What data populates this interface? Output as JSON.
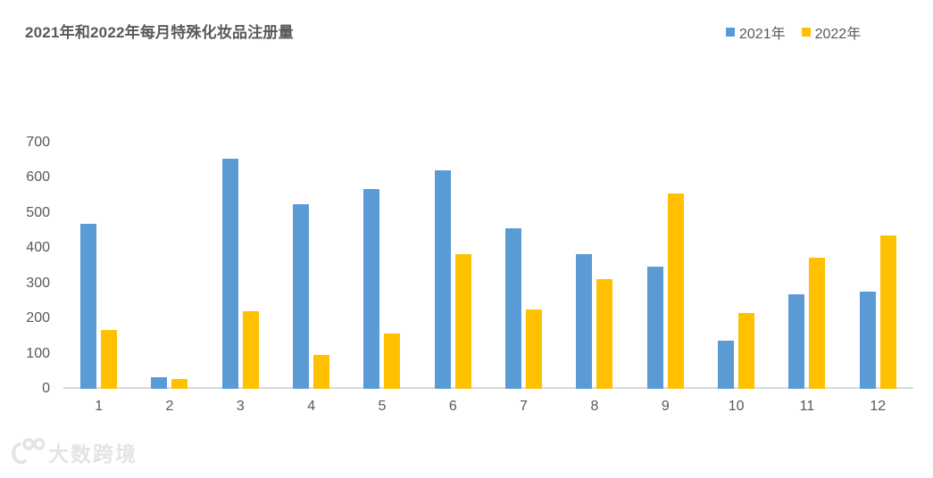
{
  "title": "2021年和2022年每月特殊化妆品注册量",
  "watermark_text": "大数跨境",
  "colors": {
    "series_2021": "#5B9BD5",
    "series_2022": "#FFC000",
    "axis_line": "#D9D9D9",
    "text": "#595959"
  },
  "chart_data": {
    "type": "bar",
    "title": "2021年和2022年每月特殊化妆品注册量",
    "categories": [
      "1",
      "2",
      "3",
      "4",
      "5",
      "6",
      "7",
      "8",
      "9",
      "10",
      "11",
      "12"
    ],
    "series": [
      {
        "name": "2021年",
        "color": "#5B9BD5",
        "values": [
          470,
          34,
          655,
          524,
          567,
          622,
          456,
          383,
          347,
          136,
          268,
          276
        ]
      },
      {
        "name": "2022年",
        "color": "#FFC000",
        "values": [
          168,
          29,
          220,
          96,
          157,
          383,
          225,
          312,
          556,
          215,
          372,
          436
        ]
      }
    ],
    "xlabel": "",
    "ylabel": "",
    "ylim": [
      0,
      700
    ],
    "y_ticks": [
      0,
      100,
      200,
      300,
      400,
      500,
      600,
      700
    ],
    "grid": false,
    "legend_position": "top-right"
  }
}
